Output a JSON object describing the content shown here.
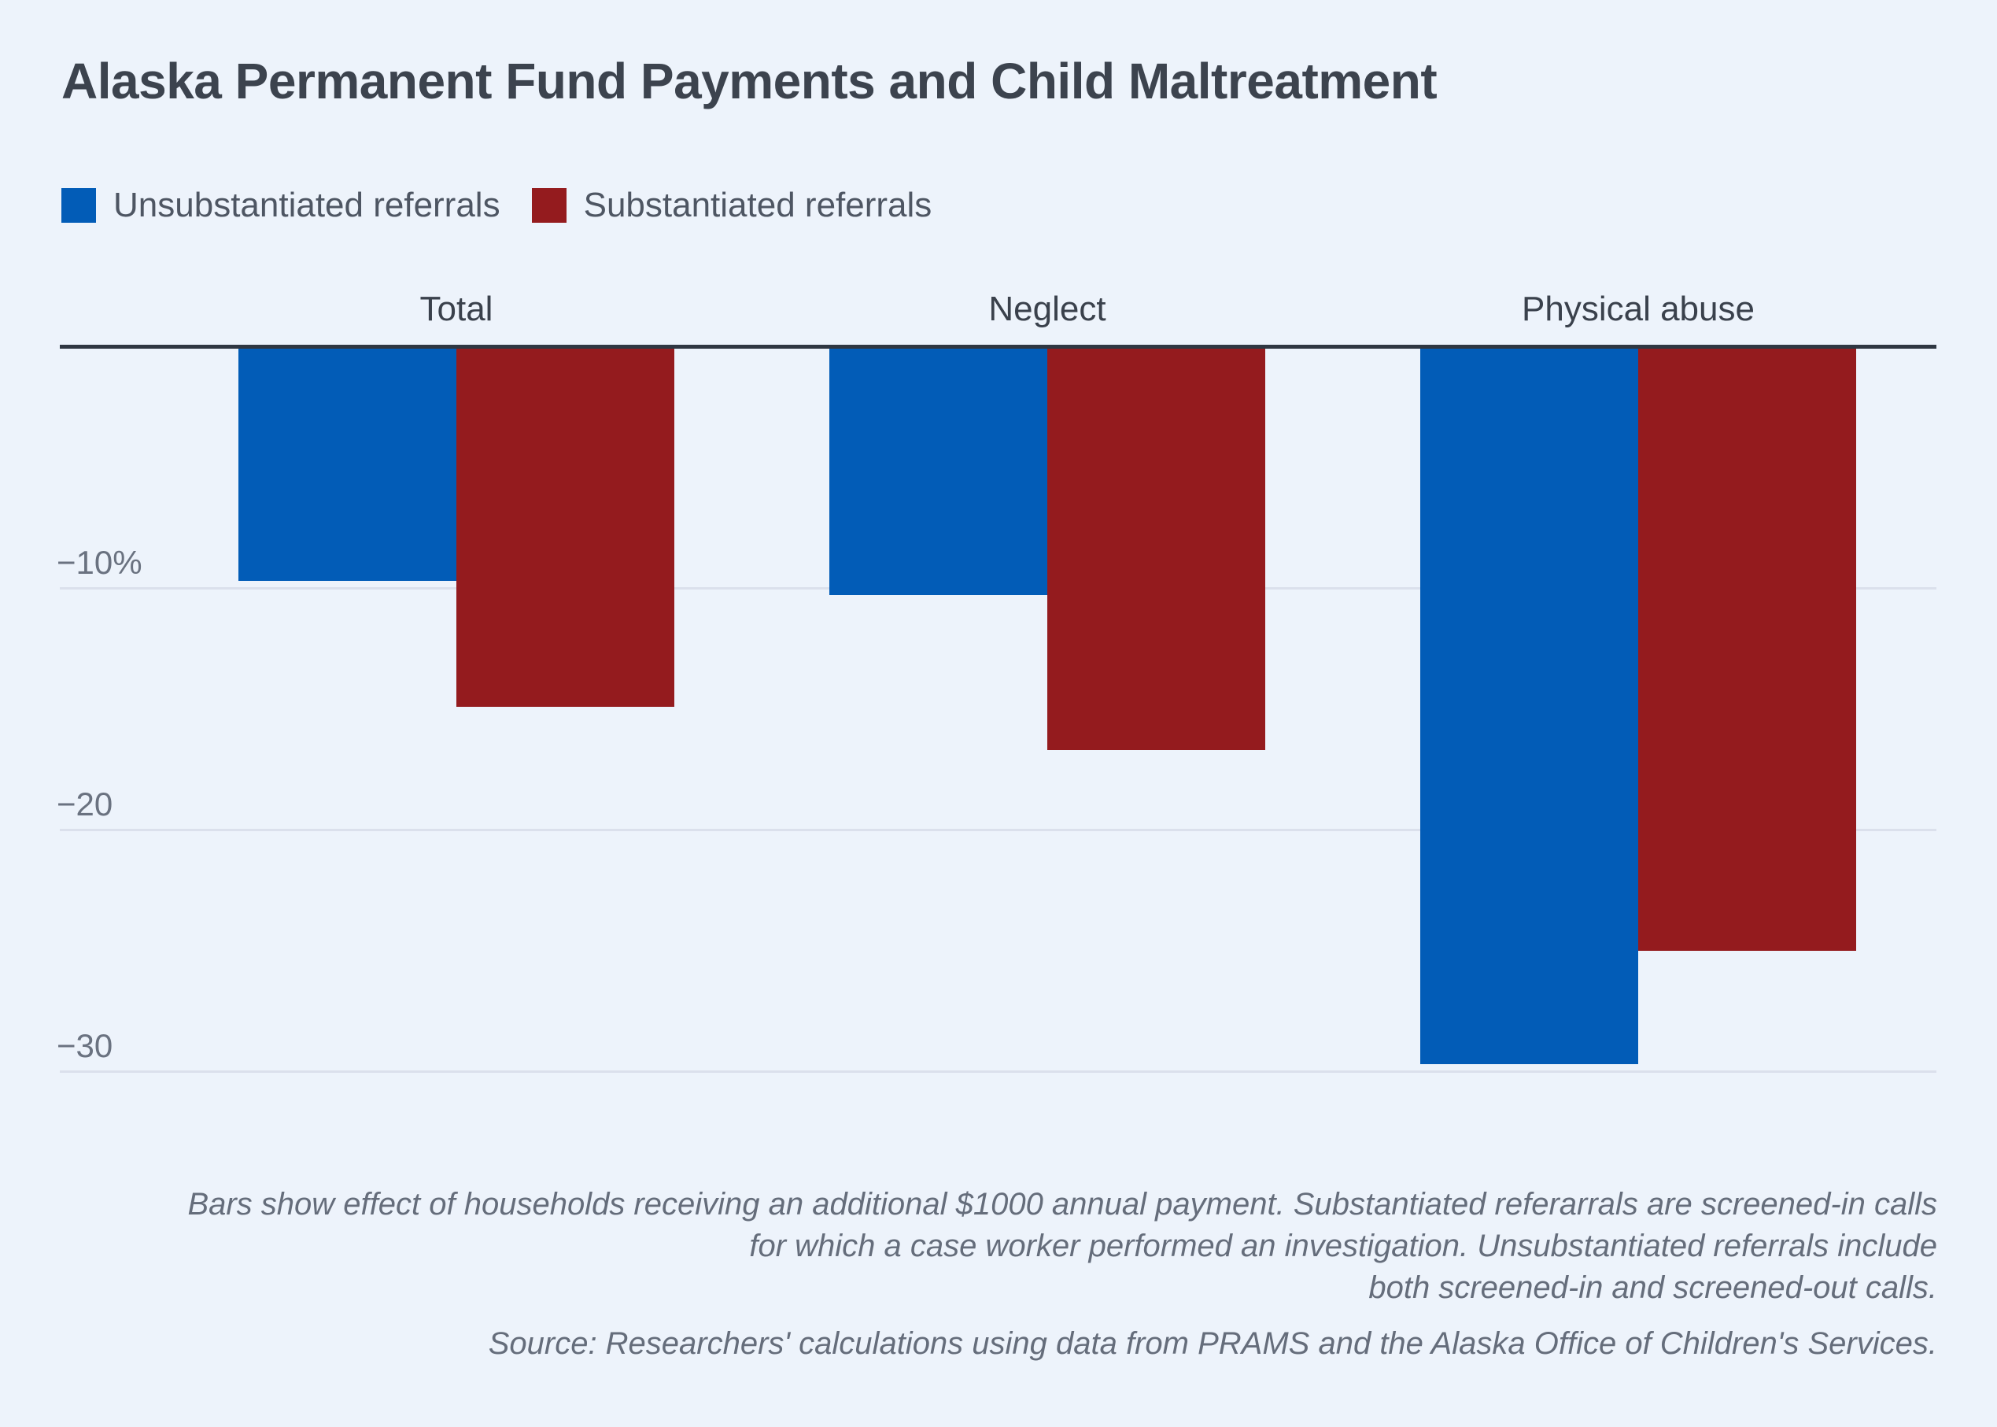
{
  "page": {
    "background": "#EDF3FB"
  },
  "header": {
    "title": "Alaska Permanent Fund Payments and Child Maltreatment"
  },
  "legend": {
    "items": [
      {
        "label": "Unsubstantiated referrals",
        "color": "#025CB7"
      },
      {
        "label": "Substantiated referrals",
        "color": "#941B1E"
      }
    ]
  },
  "chart_data": {
    "type": "bar",
    "title": "Alaska Permanent Fund Payments and Child Maltreatment",
    "categories": [
      "Total",
      "Neglect",
      "Physical abuse"
    ],
    "series": [
      {
        "name": "Unsubstantiated referrals",
        "color": "#025CB7",
        "values": [
          -9.7,
          -10.3,
          -29.7
        ]
      },
      {
        "name": "Substantiated referrals",
        "color": "#941B1E",
        "values": [
          -14.9,
          -16.7,
          -25.0
        ]
      }
    ],
    "unit": "percent change per additional $1000 annual payment",
    "yticks": [
      {
        "value": -10,
        "label": "−10%"
      },
      {
        "value": -20,
        "label": "−20"
      },
      {
        "value": -30,
        "label": "−30"
      }
    ],
    "ylim": [
      -32.5,
      0
    ],
    "grid": true,
    "legend_position": "top-left",
    "xlabel": "",
    "ylabel": ""
  },
  "notes": {
    "lines": [
      "Bars show effect of households receiving an additional $1000 annual payment. Substantiated referarrals are screened-in calls",
      "for which a case worker performed an investigation. Unsubstantiated referrals include",
      "both screened-in and screened-out calls."
    ]
  },
  "source": {
    "text": "Source: Researchers' calculations using data from PRAMS and the Alaska Office of Children's Services."
  }
}
